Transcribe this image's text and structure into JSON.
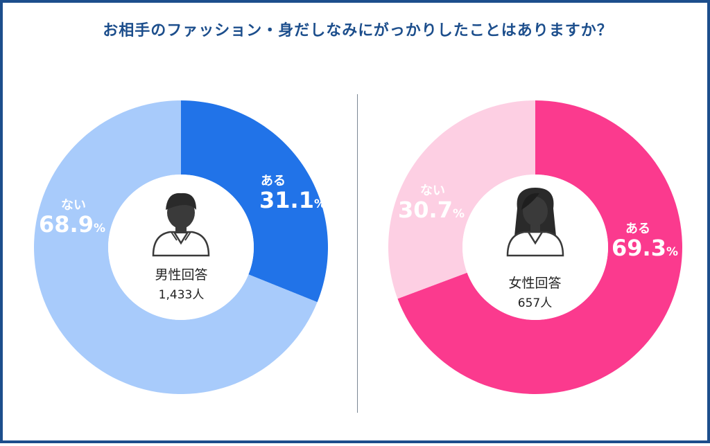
{
  "title": "お相手のファッション・身だしなみにがっかりしたことはありますか？",
  "chart_data": [
    {
      "type": "pie",
      "group": "男性回答",
      "respondents": "1,433人",
      "slices": [
        {
          "label": "ある",
          "value": 31.1,
          "color": "#2173e8"
        },
        {
          "label": "ない",
          "value": 68.9,
          "color": "#a8cbfb"
        }
      ],
      "unit": "%"
    },
    {
      "type": "pie",
      "group": "女性回答",
      "respondents": "657人",
      "slices": [
        {
          "label": "ある",
          "value": 69.3,
          "color": "#fb3a8e"
        },
        {
          "label": "ない",
          "value": 30.7,
          "color": "#fdcfe3"
        }
      ],
      "unit": "%"
    }
  ],
  "icons": {
    "male": "male-person-icon",
    "female": "female-person-icon"
  }
}
